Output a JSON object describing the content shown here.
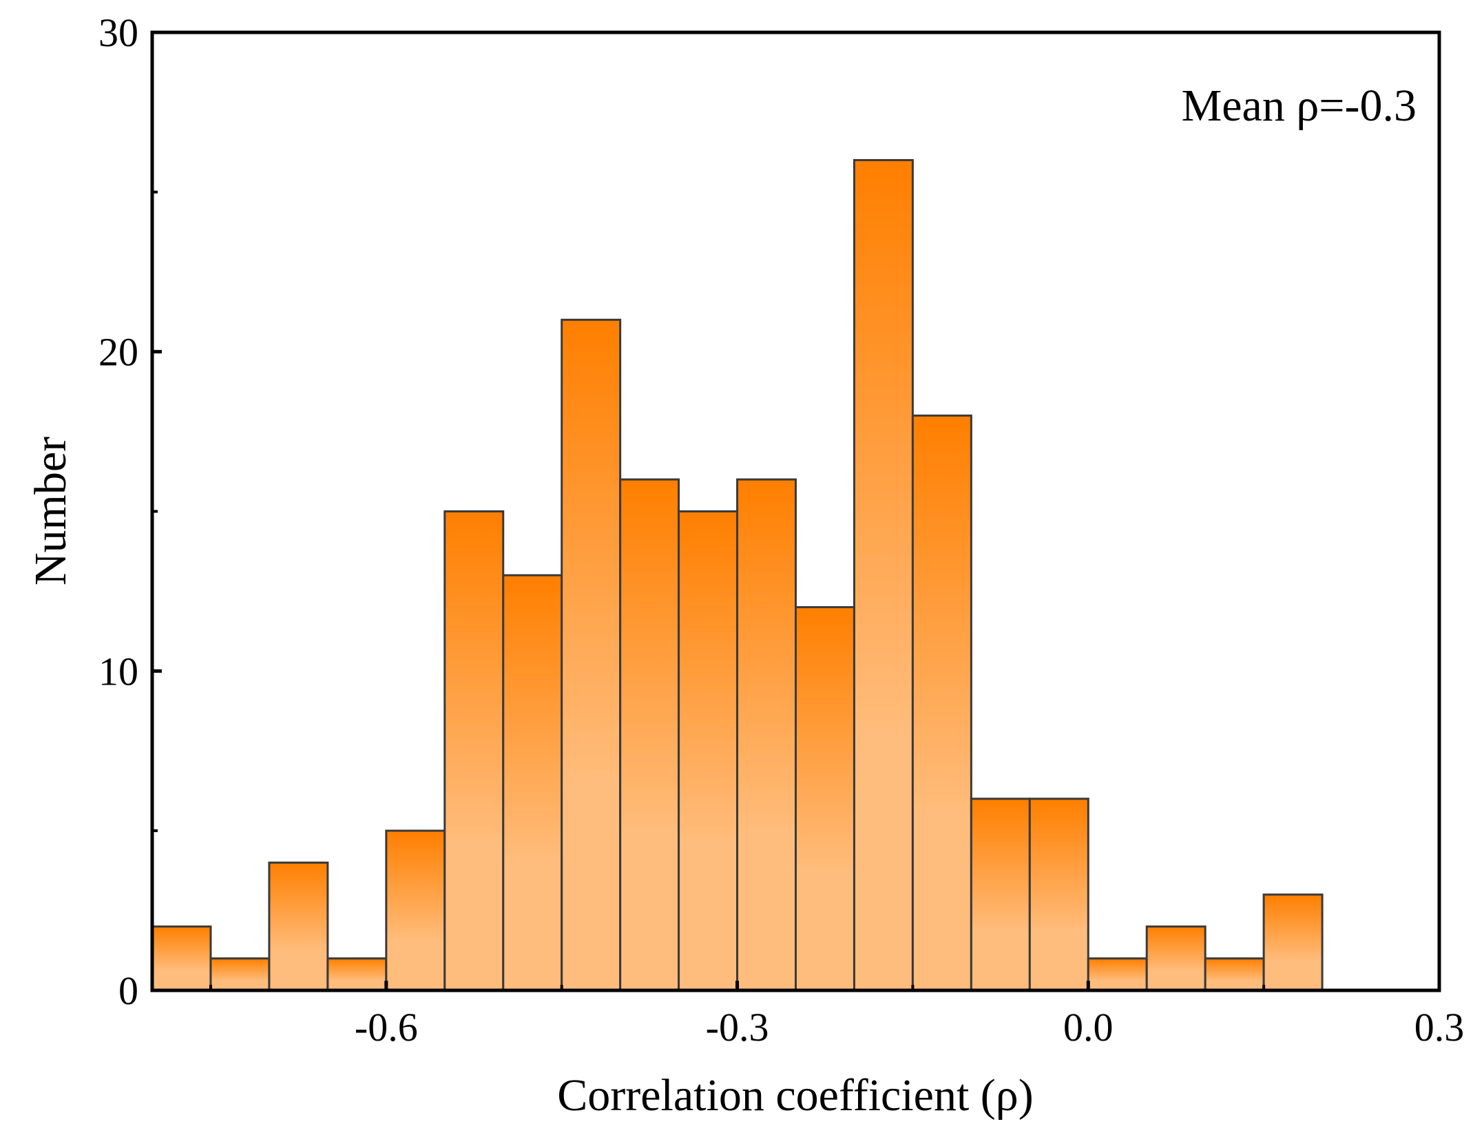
{
  "chart_data": {
    "type": "bar",
    "subtype": "histogram",
    "title": "",
    "xlabel": "Correlation coefficient (ρ)",
    "ylabel": "Number",
    "xlim": [
      -0.8,
      0.3
    ],
    "ylim": [
      0,
      30
    ],
    "bin_width": 0.05,
    "x_ticks": [
      -0.6,
      -0.3,
      0.0,
      0.3
    ],
    "x_tick_labels": [
      "-0.6",
      "-0.3",
      "0.0",
      "0.3"
    ],
    "y_ticks": [
      0,
      10,
      20,
      30
    ],
    "y_tick_labels": [
      "0",
      "10",
      "20",
      "30"
    ],
    "bins": [
      {
        "x0": -0.8,
        "x1": -0.75,
        "count": 2
      },
      {
        "x0": -0.75,
        "x1": -0.7,
        "count": 1
      },
      {
        "x0": -0.7,
        "x1": -0.65,
        "count": 4
      },
      {
        "x0": -0.65,
        "x1": -0.6,
        "count": 1
      },
      {
        "x0": -0.6,
        "x1": -0.55,
        "count": 5
      },
      {
        "x0": -0.55,
        "x1": -0.5,
        "count": 15
      },
      {
        "x0": -0.5,
        "x1": -0.45,
        "count": 13
      },
      {
        "x0": -0.45,
        "x1": -0.4,
        "count": 21
      },
      {
        "x0": -0.4,
        "x1": -0.35,
        "count": 16
      },
      {
        "x0": -0.35,
        "x1": -0.3,
        "count": 15
      },
      {
        "x0": -0.3,
        "x1": -0.25,
        "count": 16
      },
      {
        "x0": -0.25,
        "x1": -0.2,
        "count": 12
      },
      {
        "x0": -0.2,
        "x1": -0.15,
        "count": 26
      },
      {
        "x0": -0.15,
        "x1": -0.1,
        "count": 18
      },
      {
        "x0": -0.1,
        "x1": -0.05,
        "count": 6
      },
      {
        "x0": -0.05,
        "x1": 0.0,
        "count": 6
      },
      {
        "x0": 0.0,
        "x1": 0.05,
        "count": 1
      },
      {
        "x0": 0.05,
        "x1": 0.1,
        "count": 2
      },
      {
        "x0": 0.1,
        "x1": 0.15,
        "count": 1
      },
      {
        "x0": 0.15,
        "x1": 0.2,
        "count": 3
      }
    ],
    "annotation": "Mean ρ=-0.3",
    "annotation_position": "top-right",
    "grid": false,
    "legend": false,
    "colors": {
      "bar_top": "#ff7f00",
      "bar_bottom": "#ffbd7d",
      "bar_edge": "#3a3a3a",
      "axis": "#000000"
    }
  }
}
